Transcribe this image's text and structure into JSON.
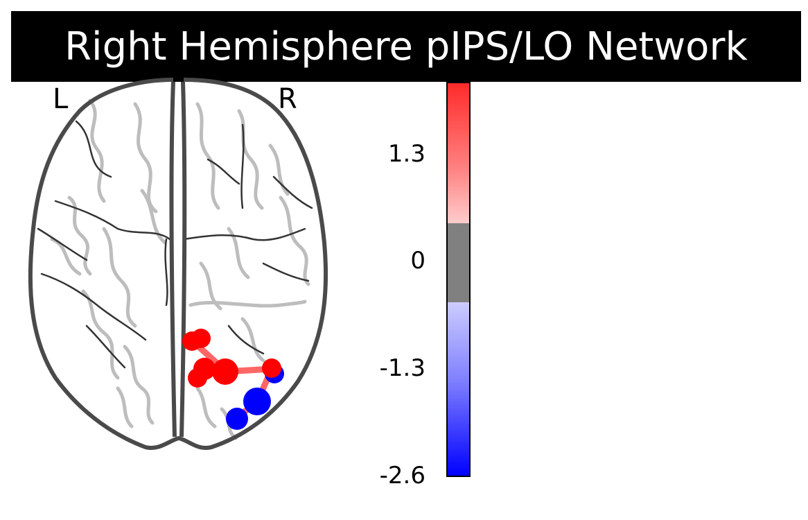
{
  "title": "Right Hemisphere pIPS/LO Network",
  "orientation": {
    "left": "L",
    "right": "R"
  },
  "colorbar": {
    "ticks": [
      "1.3",
      "0",
      "-1.3",
      "-2.6"
    ],
    "colors": {
      "positive_top": "#ff2a2a",
      "positive_mid": "#ff8080",
      "positive_low": "#ffcccc",
      "neutral": "#808080",
      "negative_high": "#ccccff",
      "negative_mid": "#8080ff",
      "negative_low": "#0000ff"
    }
  },
  "nodes": [
    {
      "id": "n1",
      "color": "#ff0000"
    },
    {
      "id": "n2",
      "color": "#ff0000"
    },
    {
      "id": "n3",
      "color": "#ff0000"
    },
    {
      "id": "n4",
      "color": "#ff0000"
    },
    {
      "id": "n5",
      "color": "#ff0000"
    },
    {
      "id": "n6",
      "color": "#ff0000"
    },
    {
      "id": "n7",
      "color": "#0000ff"
    },
    {
      "id": "n8",
      "color": "#0000ff"
    },
    {
      "id": "n9",
      "color": "#0000ff"
    }
  ],
  "edge_color": "#ff6666"
}
